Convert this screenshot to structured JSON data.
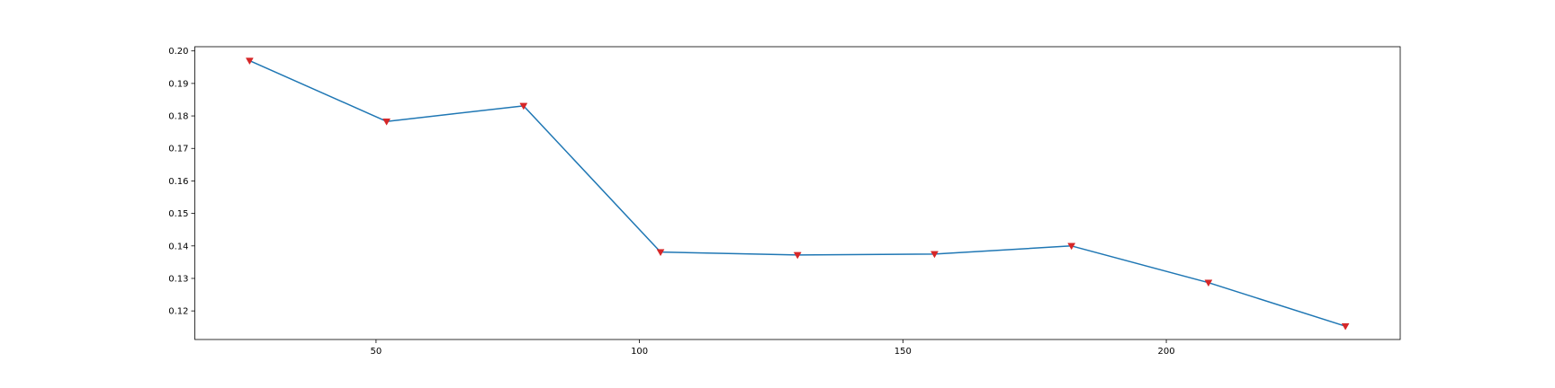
{
  "chart_data": {
    "type": "line",
    "title": "",
    "xlabel": "",
    "ylabel": "",
    "xlim": [
      15.6,
      244.4
    ],
    "ylim": [
      0.1112,
      0.2013
    ],
    "x_ticks": [
      50,
      100,
      150,
      200
    ],
    "x_tick_labels": [
      "50",
      "100",
      "150",
      "200"
    ],
    "y_ticks": [
      0.12,
      0.13,
      0.14,
      0.15,
      0.16,
      0.17,
      0.18,
      0.19,
      0.2
    ],
    "y_tick_labels": [
      "0.12",
      "0.13",
      "0.14",
      "0.15",
      "0.16",
      "0.17",
      "0.18",
      "0.19",
      "0.20"
    ],
    "grid": false,
    "series": [
      {
        "x": [
          26,
          52,
          78,
          104,
          130,
          156,
          182,
          208,
          234
        ],
        "values": [
          0.197,
          0.1783,
          0.1831,
          0.1381,
          0.1372,
          0.1375,
          0.14,
          0.1287,
          0.1153
        ],
        "line_color": "#1f77b4",
        "marker": "triangle-down",
        "marker_color": "#d62728"
      }
    ]
  }
}
